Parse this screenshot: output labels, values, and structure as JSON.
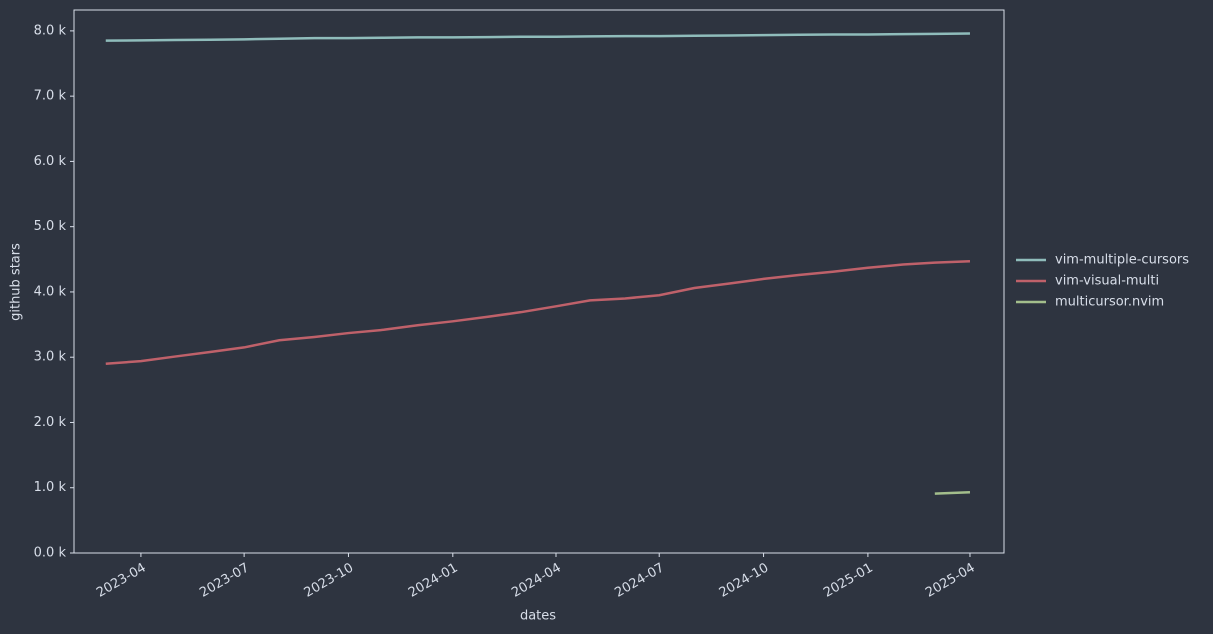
{
  "chart_data": {
    "type": "line",
    "xlabel": "dates",
    "ylabel": "github stars",
    "x": [
      "2023-03",
      "2023-04",
      "2023-05",
      "2023-06",
      "2023-07",
      "2023-08",
      "2023-09",
      "2023-10",
      "2023-11",
      "2023-12",
      "2024-01",
      "2024-02",
      "2024-03",
      "2024-04",
      "2024-05",
      "2024-06",
      "2024-07",
      "2024-08",
      "2024-09",
      "2024-10",
      "2024-11",
      "2024-12",
      "2025-01",
      "2025-02",
      "2025-03",
      "2025-04"
    ],
    "series": [
      {
        "name": "vim-multiple-cursors",
        "color": "#8fbcbb",
        "values": [
          7850,
          7855,
          7860,
          7865,
          7870,
          7880,
          7890,
          7890,
          7895,
          7900,
          7900,
          7905,
          7910,
          7910,
          7915,
          7920,
          7920,
          7925,
          7930,
          7935,
          7940,
          7945,
          7945,
          7950,
          7955,
          7960
        ]
      },
      {
        "name": "vim-visual-multi",
        "color": "#bf616a",
        "values": [
          2900,
          2940,
          3010,
          3080,
          3150,
          3260,
          3310,
          3370,
          3420,
          3490,
          3550,
          3620,
          3690,
          3780,
          3870,
          3900,
          3950,
          4060,
          4130,
          4200,
          4260,
          4310,
          4370,
          4420,
          4450,
          4470
        ]
      },
      {
        "name": "multicursor.nvim",
        "color": "#a3be8c",
        "values": [
          null,
          null,
          null,
          null,
          null,
          null,
          null,
          null,
          null,
          null,
          null,
          null,
          null,
          null,
          null,
          null,
          null,
          null,
          null,
          null,
          null,
          null,
          null,
          null,
          910,
          930
        ]
      }
    ],
    "xlim": [
      "2023-02",
      "2025-05"
    ],
    "xticks": [
      "2023-04",
      "2023-07",
      "2023-10",
      "2024-01",
      "2024-04",
      "2024-07",
      "2024-10",
      "2025-01",
      "2025-04"
    ],
    "ylim": [
      0,
      8320
    ],
    "yticks": [
      {
        "value": 0,
        "label": "0.0 k"
      },
      {
        "value": 1000,
        "label": "1.0 k"
      },
      {
        "value": 2000,
        "label": "2.0 k"
      },
      {
        "value": 3000,
        "label": "3.0 k"
      },
      {
        "value": 4000,
        "label": "4.0 k"
      },
      {
        "value": 5000,
        "label": "5.0 k"
      },
      {
        "value": 6000,
        "label": "6.0 k"
      },
      {
        "value": 7000,
        "label": "7.0 k"
      },
      {
        "value": 8000,
        "label": "8.0 k"
      }
    ],
    "legend": "right"
  }
}
